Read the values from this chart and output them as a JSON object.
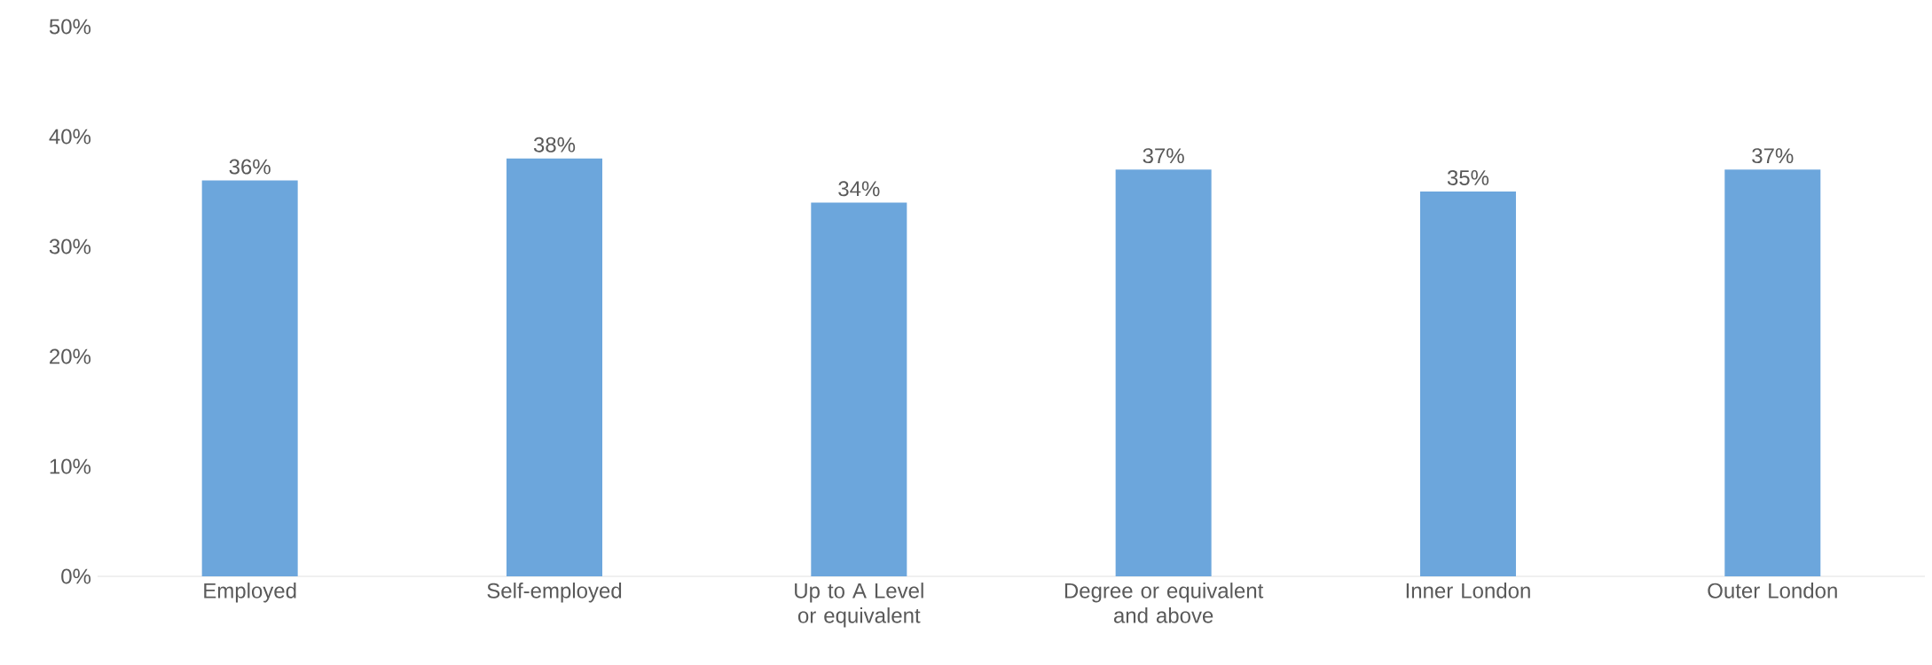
{
  "chart_data": {
    "type": "bar",
    "categories": [
      "Employed",
      "Self-employed",
      "Up to A Level or equivalent",
      "Degree or equivalent and above",
      "Inner London",
      "Outer London"
    ],
    "values": [
      36,
      38,
      34,
      37,
      35,
      37
    ],
    "value_labels": [
      "36%",
      "38%",
      "34%",
      "37%",
      "35%",
      "37%"
    ],
    "color": "#6ca6dc",
    "ylim": [
      0,
      50
    ],
    "yticks": [
      {
        "value": 0,
        "label": "0%"
      },
      {
        "value": 10,
        "label": "10%"
      },
      {
        "value": 20,
        "label": "20%"
      },
      {
        "value": 30,
        "label": "30%"
      },
      {
        "value": 40,
        "label": "40%"
      },
      {
        "value": 50,
        "label": "50%"
      }
    ],
    "grid": false
  }
}
